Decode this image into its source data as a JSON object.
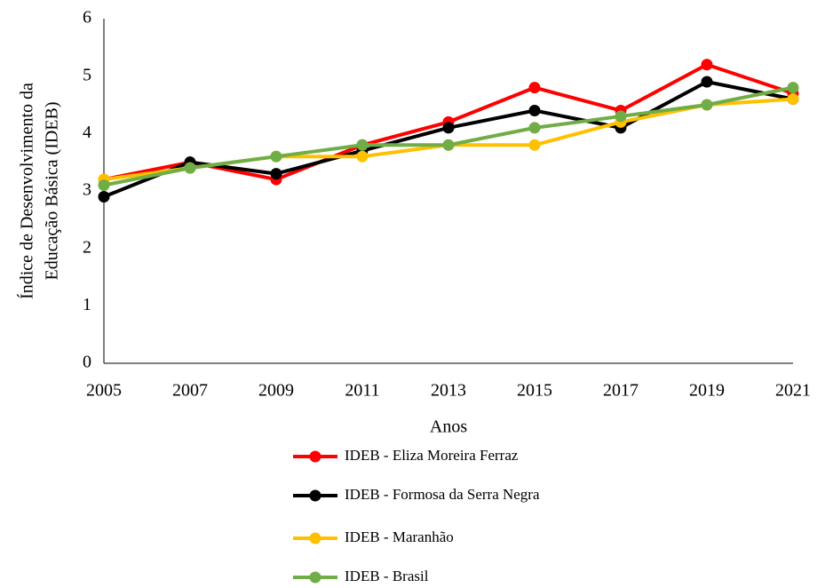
{
  "chart_data": {
    "type": "line",
    "xlabel": "Anos",
    "ylabel": [
      "Índice  de Desenvolvimento da",
      "Educação Básica (IDEB)"
    ],
    "x": [
      2005,
      2007,
      2009,
      2011,
      2013,
      2015,
      2017,
      2019,
      2021
    ],
    "xlim": [
      2005,
      2021
    ],
    "xticks": [
      2005,
      2007,
      2009,
      2011,
      2013,
      2015,
      2017,
      2019,
      2021
    ],
    "ylim": [
      0,
      6
    ],
    "yticks": [
      0,
      1,
      2,
      3,
      4,
      5,
      6
    ],
    "grid": false,
    "legend": "bottom",
    "series": [
      {
        "name": "IDEB - Eliza Moreira Ferraz",
        "color": "#ff0000",
        "values": [
          3.2,
          3.5,
          3.2,
          3.8,
          4.2,
          4.8,
          4.4,
          5.2,
          4.7
        ]
      },
      {
        "name": "IDEB - Formosa da Serra Negra",
        "color": "#000000",
        "values": [
          2.9,
          3.5,
          3.3,
          3.7,
          4.1,
          4.4,
          4.1,
          4.9,
          4.6
        ]
      },
      {
        "name": "IDEB - Maranhão",
        "color": "#ffc000",
        "values": [
          3.2,
          3.4,
          3.6,
          3.6,
          3.8,
          3.8,
          4.2,
          4.5,
          4.6
        ]
      },
      {
        "name": "IDEB - Brasil",
        "color": "#70ad47",
        "values": [
          3.1,
          3.4,
          3.6,
          3.8,
          3.8,
          4.1,
          4.3,
          4.5,
          4.8
        ]
      }
    ]
  }
}
